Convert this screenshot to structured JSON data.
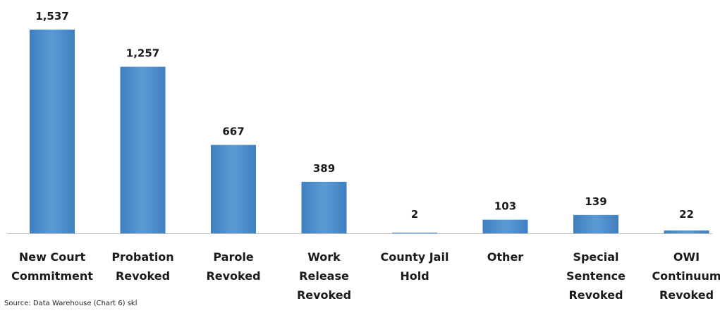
{
  "chart_data": {
    "type": "bar",
    "categories": [
      [
        "New Court",
        "Commitment"
      ],
      [
        "Probation",
        "Revoked"
      ],
      [
        "Parole",
        "Revoked"
      ],
      [
        "Work",
        "Release",
        "Revoked"
      ],
      [
        "County Jail",
        "Hold"
      ],
      [
        "Other"
      ],
      [
        "Special",
        "Sentence",
        "Revoked"
      ],
      [
        "OWI",
        "Continuum",
        "Revoked"
      ]
    ],
    "values": [
      1537,
      1257,
      667,
      389,
      2,
      103,
      139,
      22
    ],
    "value_labels": [
      "1,537",
      "1,257",
      "667",
      "389",
      "2",
      "103",
      "139",
      "22"
    ],
    "title": "",
    "xlabel": "",
    "ylabel": "",
    "ylim": [
      0,
      1537
    ],
    "grid": false,
    "legend": "none",
    "bar_color": "#5b9bd5",
    "bar_color_dark": "#3f7fc0"
  },
  "source": "Source: Data Warehouse (Chart 6) skl"
}
